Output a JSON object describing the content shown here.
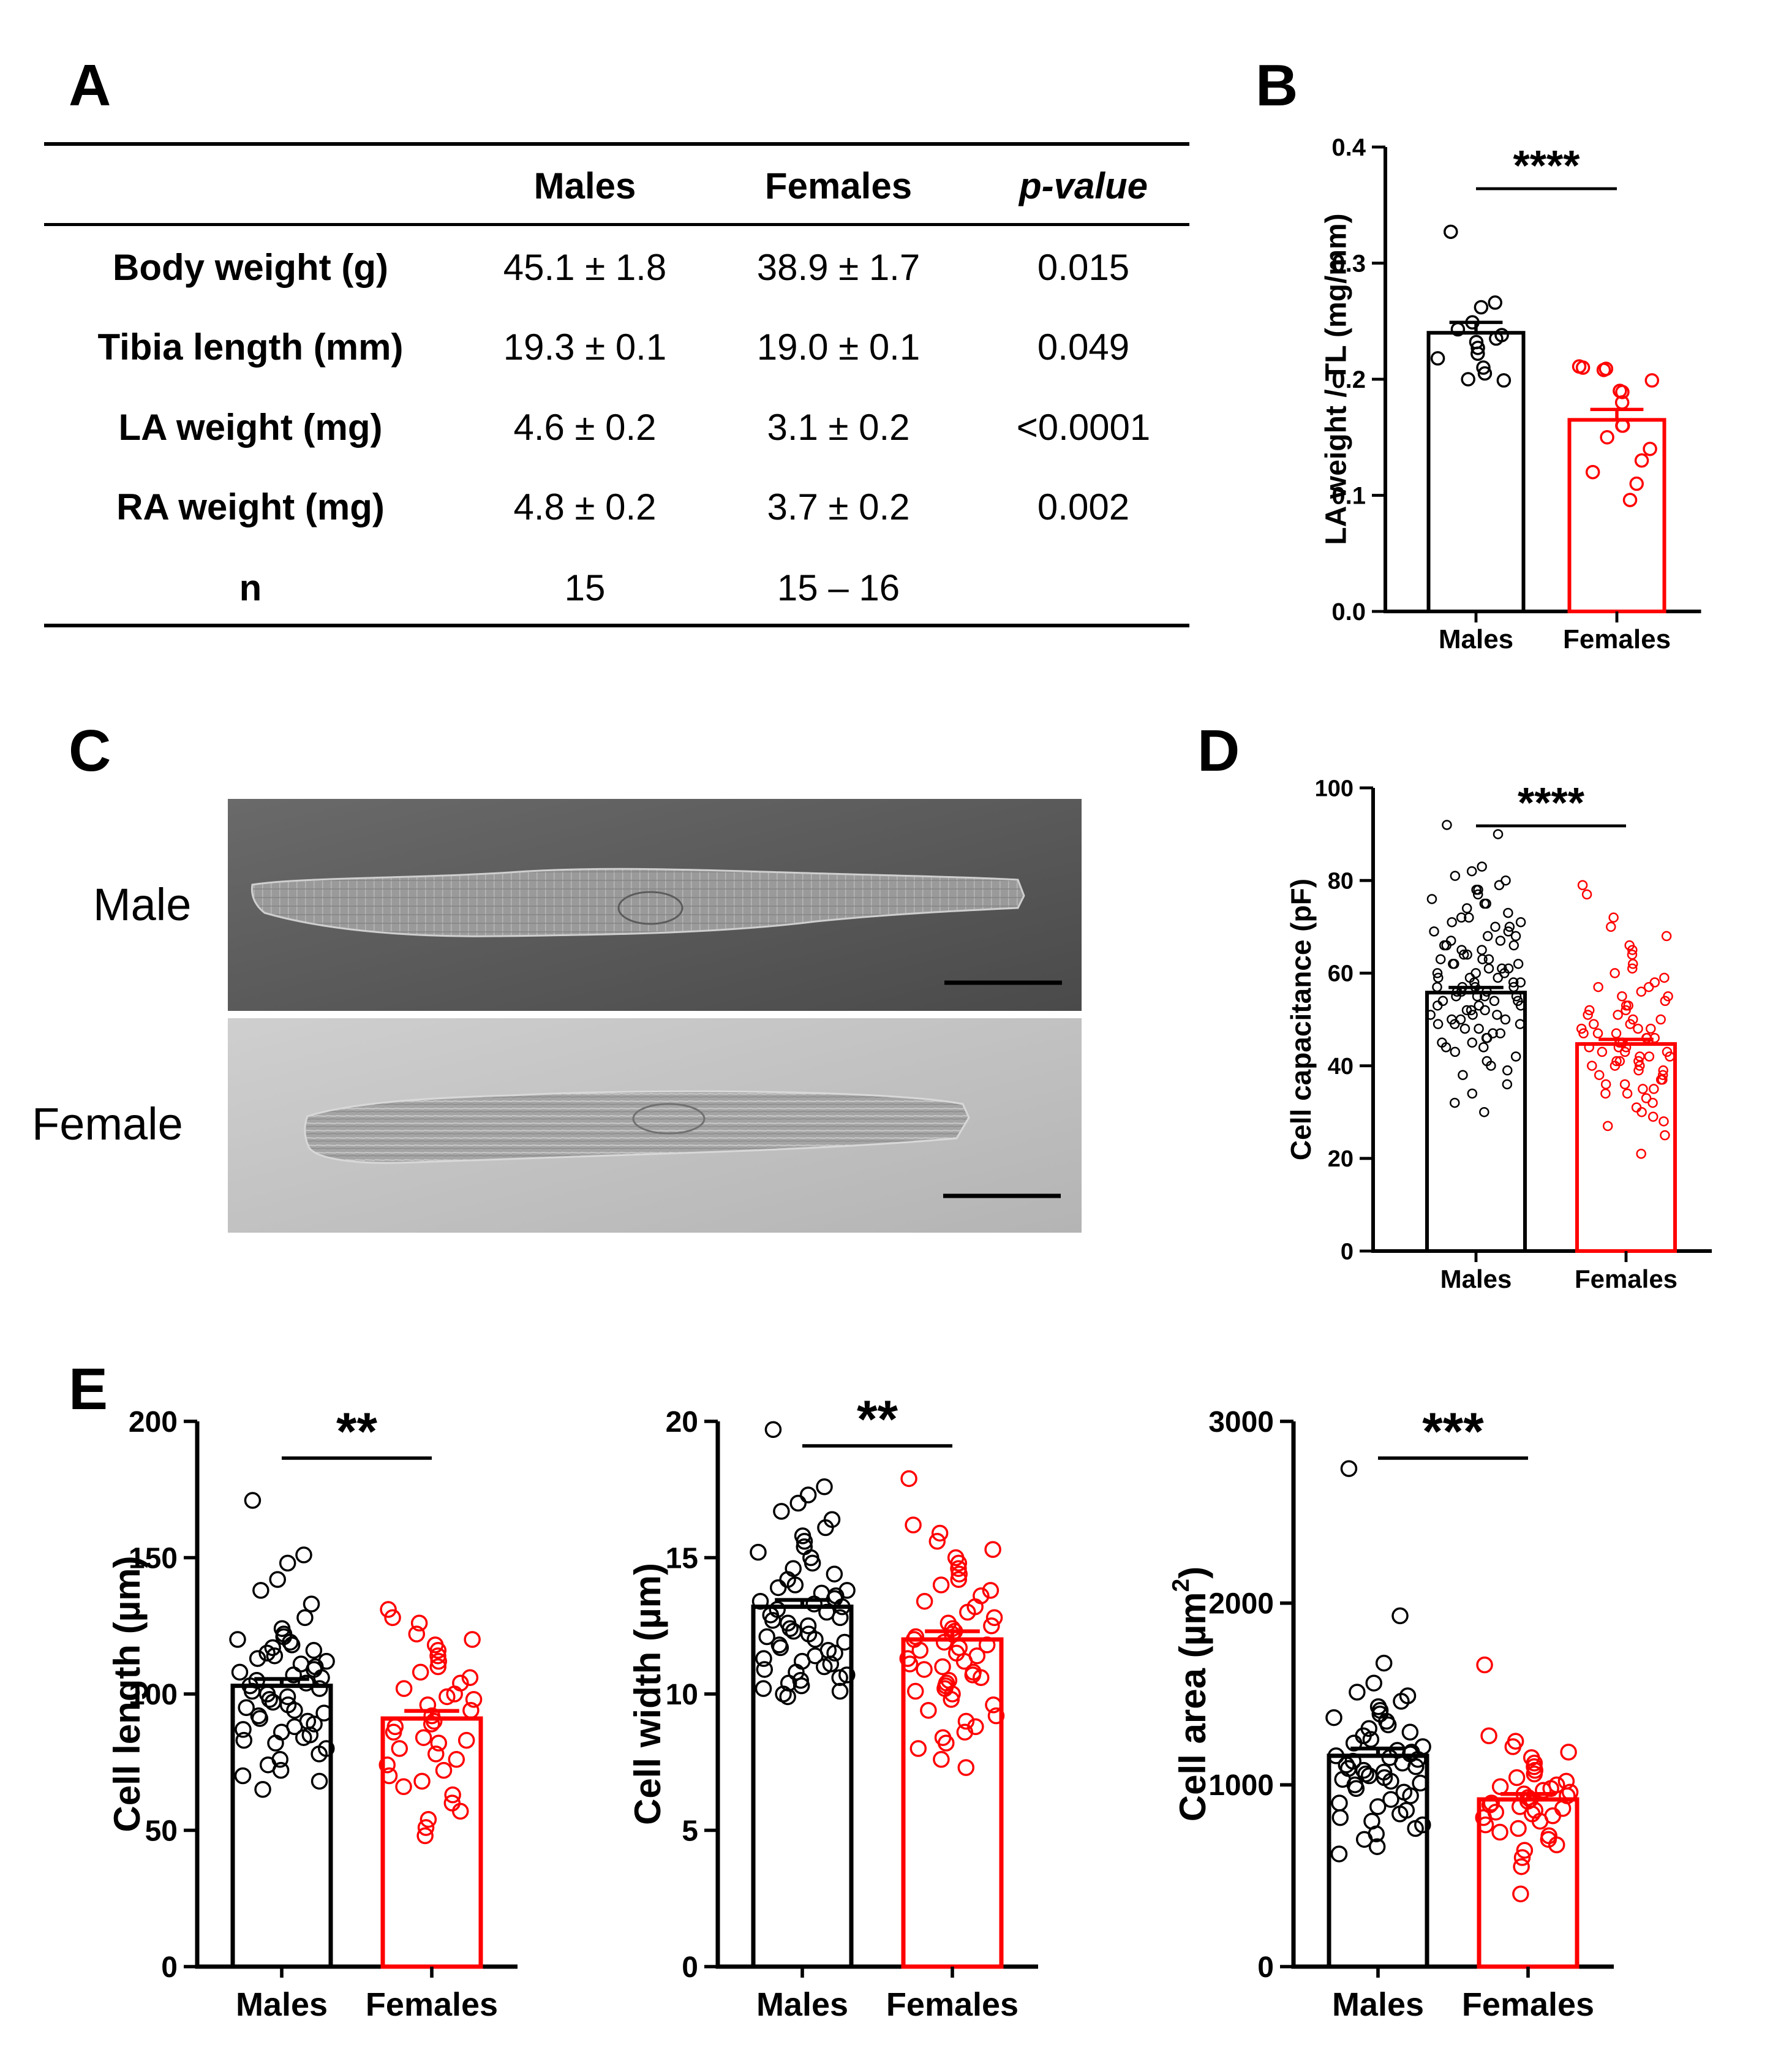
{
  "panels": {
    "a": "A",
    "b": "B",
    "c": "C",
    "d": "D",
    "e": "E"
  },
  "table": {
    "headers": [
      "",
      "Males",
      "Females",
      "p-value"
    ],
    "rows": [
      [
        "Body weight (g)",
        "45.1 ± 1.8",
        "38.9 ± 1.7",
        "0.015"
      ],
      [
        "Tibia length (mm)",
        "19.3 ± 0.1",
        "19.0 ± 0.1",
        "0.049"
      ],
      [
        "LA weight (mg)",
        "4.6 ± 0.2",
        "3.1 ± 0.2",
        "<0.0001"
      ],
      [
        "RA weight (mg)",
        "4.8 ± 0.2",
        "3.7 ± 0.2",
        "0.002"
      ],
      [
        "n",
        "15",
        "15 – 16",
        ""
      ]
    ]
  },
  "micrograph": {
    "labels": [
      "Male",
      "Female"
    ],
    "colors": {
      "male_bg": "#5a5a5a",
      "female_bg": "#c4c4c4",
      "scalebar": "#000000"
    }
  },
  "colors": {
    "males": "#000000",
    "females": "#ff0000"
  },
  "chart_data": [
    {
      "id": "B",
      "type": "bar",
      "categories": [
        "Males",
        "Females"
      ],
      "ylabel": "LA weight / TL (mg/mm)",
      "ylim": [
        0,
        0.4
      ],
      "yticks": [
        0.0,
        0.1,
        0.2,
        0.3,
        0.4
      ],
      "ytick_labels": [
        "0.0",
        "0.1",
        "0.2",
        "0.3",
        "0.4"
      ],
      "means": [
        0.24,
        0.165
      ],
      "sem": [
        0.009,
        0.009
      ],
      "significance": "****",
      "points": [
        [
          0.327,
          0.266,
          0.262,
          0.249,
          0.243,
          0.238,
          0.235,
          0.232,
          0.227,
          0.222,
          0.218,
          0.21,
          0.205,
          0.2,
          0.199
        ],
        [
          0.211,
          0.21,
          0.209,
          0.208,
          0.199,
          0.19,
          0.189,
          0.18,
          0.16,
          0.16,
          0.15,
          0.14,
          0.13,
          0.12,
          0.11,
          0.096
        ]
      ]
    },
    {
      "id": "D",
      "type": "bar",
      "categories": [
        "Males",
        "Females"
      ],
      "ylabel": "Cell capacitance (pF)",
      "ylim": [
        0,
        100
      ],
      "yticks": [
        0,
        20,
        40,
        60,
        80,
        100
      ],
      "ytick_labels": [
        "0",
        "20",
        "40",
        "60",
        "80",
        "100"
      ],
      "means": [
        55.8,
        44.7
      ],
      "sem": [
        1.1,
        1.0
      ],
      "significance": "****",
      "points": [
        [
          92,
          90,
          83,
          82,
          81,
          80,
          79,
          78,
          78,
          77,
          76,
          75,
          75,
          74,
          73,
          72,
          72,
          71,
          71,
          70,
          70,
          69,
          69,
          68,
          68,
          67,
          67,
          66,
          66,
          66,
          65,
          65,
          64,
          64,
          63,
          63,
          63,
          62,
          62,
          62,
          61,
          61,
          61,
          60,
          60,
          60,
          59,
          59,
          59,
          58,
          58,
          58,
          57,
          57,
          57,
          57,
          56,
          56,
          56,
          55,
          55,
          55,
          55,
          54,
          54,
          54,
          53,
          53,
          53,
          52,
          52,
          52,
          51,
          51,
          51,
          50,
          50,
          50,
          49,
          49,
          49,
          48,
          48,
          47,
          47,
          46,
          46,
          45,
          45,
          44,
          44,
          43,
          42,
          41,
          40,
          39,
          38,
          36,
          34,
          32,
          30
        ],
        [
          79,
          77,
          72,
          70,
          68,
          66,
          65,
          64,
          62,
          61,
          60,
          59,
          58,
          57,
          57,
          56,
          55,
          55,
          54,
          53,
          53,
          52,
          52,
          51,
          51,
          50,
          50,
          49,
          49,
          48,
          48,
          48,
          47,
          47,
          47,
          46,
          46,
          46,
          45,
          45,
          45,
          44,
          44,
          44,
          43,
          43,
          43,
          42,
          42,
          42,
          41,
          41,
          41,
          40,
          40,
          40,
          39,
          39,
          38,
          38,
          37,
          37,
          36,
          36,
          35,
          35,
          34,
          34,
          33,
          32,
          31,
          30,
          29,
          28,
          27,
          25,
          21
        ]
      ]
    },
    {
      "id": "E1",
      "type": "bar",
      "categories": [
        "Males",
        "Females"
      ],
      "ylabel": "Cell length (µm)",
      "ylim": [
        0,
        200
      ],
      "yticks": [
        0,
        50,
        100,
        150,
        200
      ],
      "ytick_labels": [
        "0",
        "50",
        "100",
        "150",
        "200"
      ],
      "means": [
        103,
        91
      ],
      "sem": [
        2.5,
        2.8
      ],
      "significance": "**",
      "points": [
        [
          171,
          151,
          148,
          142,
          138,
          133,
          128,
          124,
          122,
          121,
          120,
          119,
          118,
          117,
          116,
          115,
          114,
          113,
          112,
          111,
          110,
          109,
          108,
          107,
          106,
          105,
          104,
          103,
          102,
          101,
          100,
          99,
          98,
          97,
          96,
          95,
          94,
          93,
          92,
          91,
          90,
          89,
          88,
          87,
          86,
          85,
          84,
          83,
          82,
          80,
          78,
          76,
          74,
          72,
          70,
          68,
          65
        ],
        [
          131,
          128,
          126,
          122,
          120,
          118,
          116,
          114,
          112,
          110,
          108,
          106,
          104,
          102,
          100,
          99,
          98,
          96,
          94,
          92,
          90,
          89,
          88,
          86,
          84,
          83,
          82,
          80,
          78,
          76,
          74,
          72,
          70,
          68,
          66,
          63,
          60,
          57,
          54,
          51,
          48
        ]
      ]
    },
    {
      "id": "E2",
      "type": "bar",
      "categories": [
        "Males",
        "Females"
      ],
      "ylabel": "Cell width (µm)",
      "ylim": [
        0,
        20
      ],
      "yticks": [
        0,
        5,
        10,
        15,
        20
      ],
      "ytick_labels": [
        "0",
        "5",
        "10",
        "15",
        "20"
      ],
      "means": [
        13.2,
        12.0
      ],
      "sem": [
        0.25,
        0.3
      ],
      "significance": "**",
      "points": [
        [
          19.7,
          17.6,
          17.3,
          17.0,
          16.7,
          16.4,
          16.1,
          15.8,
          15.6,
          15.4,
          15.2,
          15.0,
          14.8,
          14.6,
          14.4,
          14.2,
          14.0,
          13.9,
          13.8,
          13.7,
          13.6,
          13.5,
          13.4,
          13.3,
          13.2,
          13.1,
          13.0,
          12.9,
          12.8,
          12.7,
          12.6,
          12.5,
          12.4,
          12.3,
          12.2,
          12.1,
          12.0,
          11.9,
          11.8,
          11.7,
          11.6,
          11.5,
          11.4,
          11.3,
          11.2,
          11.1,
          11.0,
          10.9,
          10.8,
          10.7,
          10.6,
          10.5,
          10.4,
          10.3,
          10.2,
          10.1,
          10.0,
          9.9
        ],
        [
          17.9,
          16.2,
          15.9,
          15.6,
          15.3,
          15.0,
          14.8,
          14.6,
          14.4,
          14.2,
          14.0,
          13.8,
          13.6,
          13.4,
          13.2,
          13.0,
          12.8,
          12.6,
          12.5,
          12.4,
          12.3,
          12.2,
          12.1,
          12.0,
          11.9,
          11.8,
          11.7,
          11.6,
          11.5,
          11.4,
          11.3,
          11.2,
          11.1,
          11.0,
          10.9,
          10.8,
          10.7,
          10.6,
          10.5,
          10.4,
          10.3,
          10.2,
          10.1,
          10.0,
          9.8,
          9.6,
          9.4,
          9.2,
          9.0,
          8.8,
          8.6,
          8.4,
          8.2,
          8.0,
          7.6,
          7.3
        ]
      ]
    },
    {
      "id": "E3",
      "type": "bar",
      "categories": [
        "Males",
        "Females"
      ],
      "ylabel": "Cell area (µm",
      "ylabel_sup": "2",
      "ylabel_end": ")",
      "ylim": [
        0,
        3000
      ],
      "yticks": [
        0,
        1000,
        2000,
        3000
      ],
      "ytick_labels": [
        "0",
        "1000",
        "2000",
        "3000"
      ],
      "means": [
        1160,
        920
      ],
      "sem": [
        40,
        30
      ],
      "significance": "***",
      "points": [
        [
          2740,
          1930,
          1670,
          1560,
          1510,
          1490,
          1460,
          1430,
          1410,
          1390,
          1370,
          1350,
          1330,
          1310,
          1290,
          1270,
          1250,
          1230,
          1210,
          1190,
          1180,
          1170,
          1160,
          1150,
          1140,
          1130,
          1120,
          1110,
          1100,
          1090,
          1080,
          1070,
          1060,
          1050,
          1040,
          1030,
          1020,
          1010,
          1000,
          980,
          960,
          940,
          920,
          900,
          880,
          860,
          840,
          820,
          800,
          780,
          760,
          730,
          700,
          660,
          620
        ],
        [
          1660,
          1270,
          1240,
          1210,
          1180,
          1150,
          1120,
          1100,
          1080,
          1060,
          1040,
          1020,
          1000,
          990,
          980,
          970,
          960,
          950,
          940,
          930,
          920,
          910,
          900,
          890,
          880,
          870,
          860,
          850,
          840,
          830,
          820,
          800,
          780,
          760,
          740,
          720,
          700,
          670,
          640,
          600,
          550,
          400
        ]
      ]
    }
  ]
}
